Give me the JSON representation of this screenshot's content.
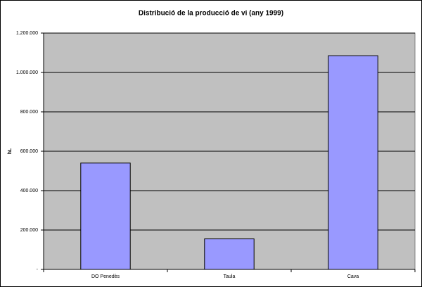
{
  "chart_data": {
    "type": "bar",
    "title": "Distribució de la producció de vi (any 1999)",
    "y_label": "hL",
    "categories": [
      "DO Penedès",
      "Taula",
      "Cava"
    ],
    "values": [
      540000,
      155000,
      1085000
    ],
    "color": "#9999ff",
    "ylim": [
      0,
      1200000
    ],
    "yticks": [
      {
        "value": 0,
        "label": "-"
      },
      {
        "value": 200000,
        "label": "200.000"
      },
      {
        "value": 400000,
        "label": "400.000"
      },
      {
        "value": 600000,
        "label": "600.000"
      },
      {
        "value": 800000,
        "label": "800.000"
      },
      {
        "value": 1000000,
        "label": "1.000.000"
      },
      {
        "value": 1200000,
        "label": "1.200.000"
      }
    ],
    "grid": true
  }
}
